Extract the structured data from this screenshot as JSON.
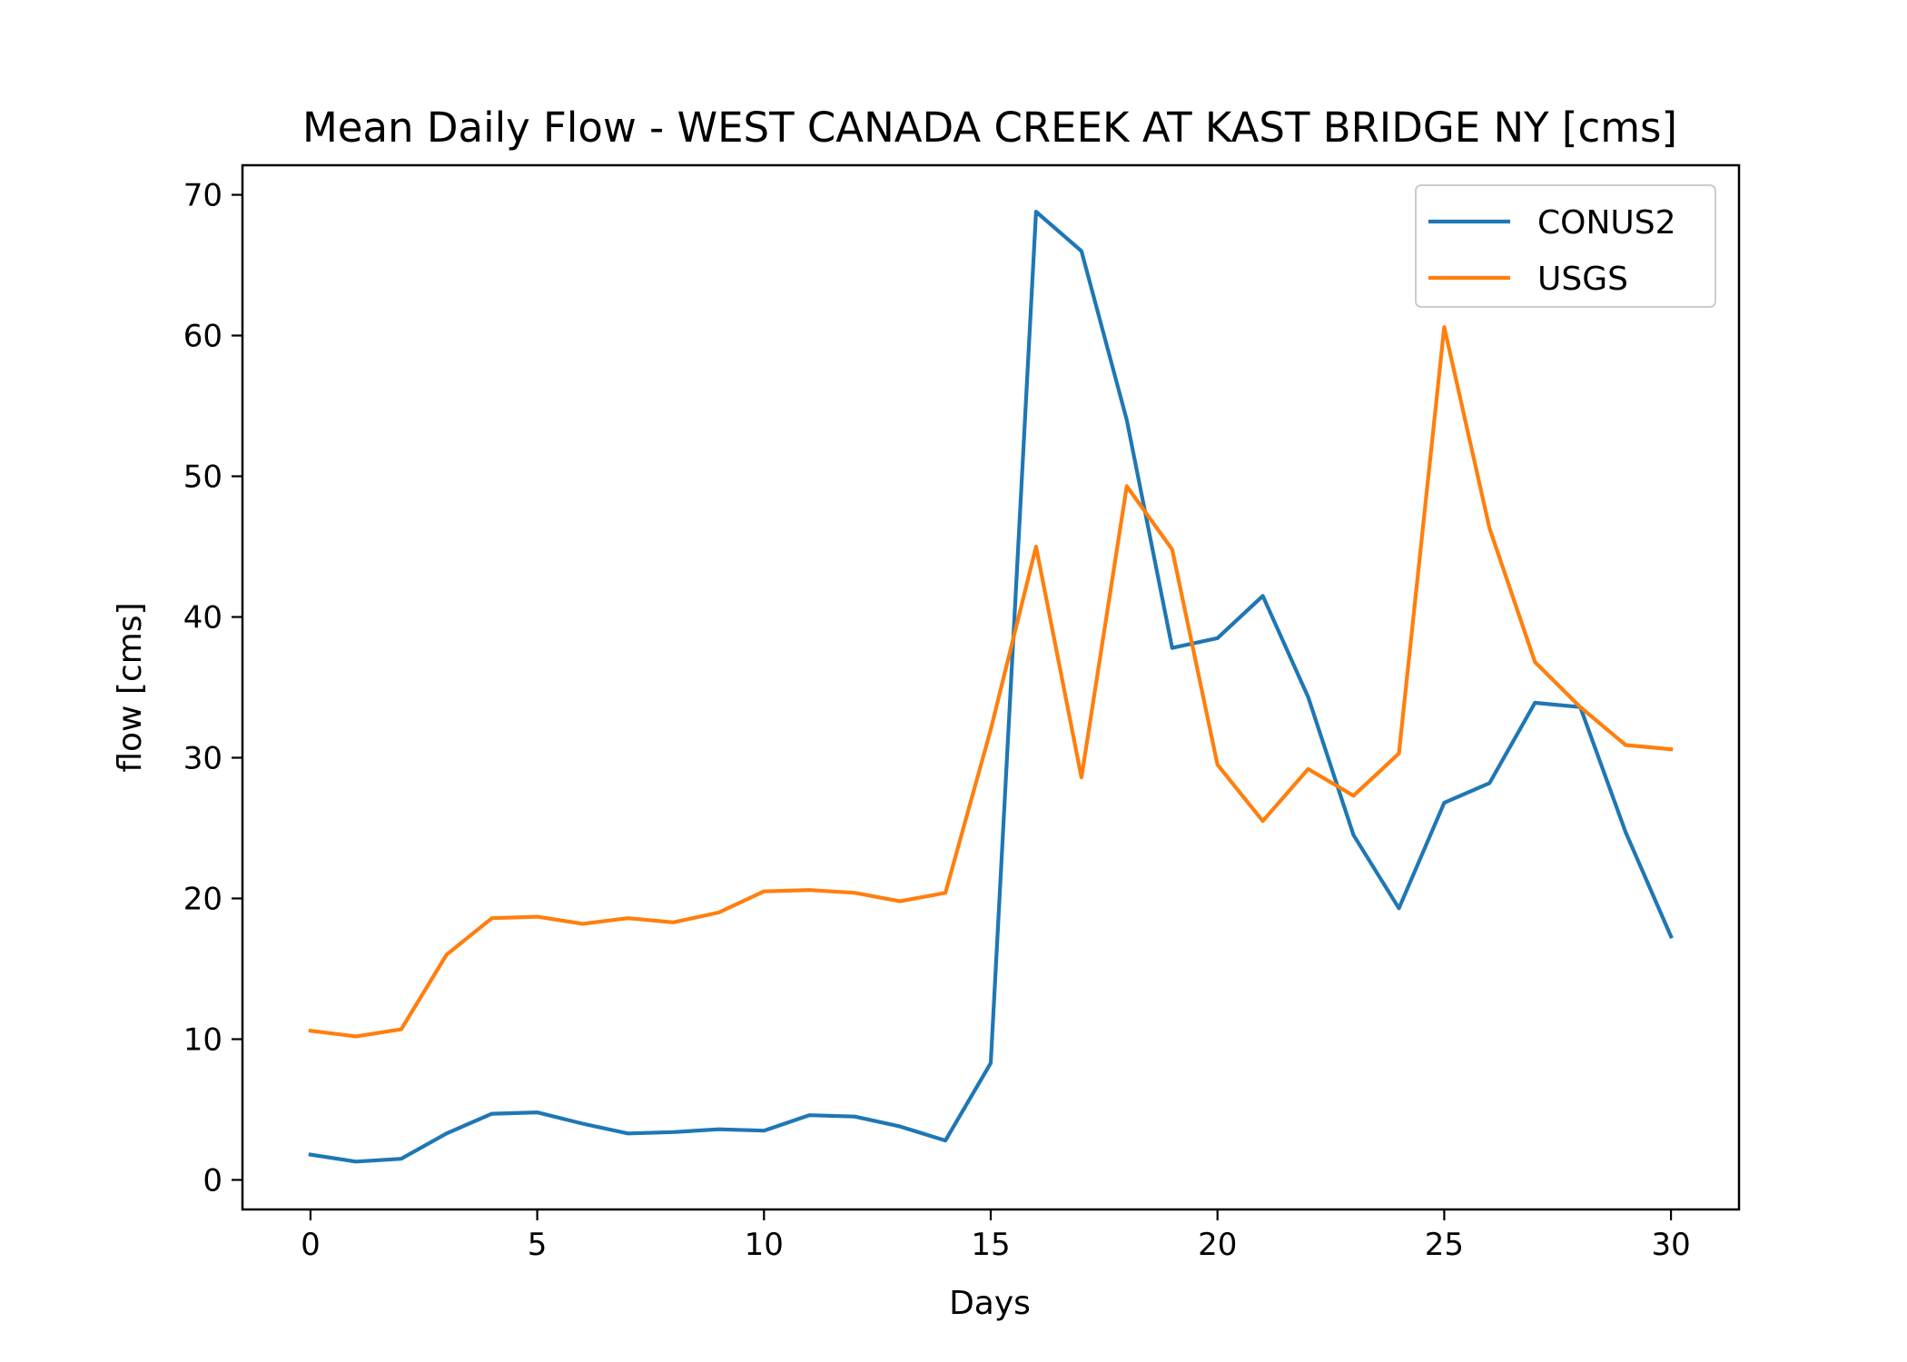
{
  "chart_data": {
    "type": "line",
    "title": "Mean Daily Flow - WEST CANADA CREEK AT KAST BRIDGE NY [cms]",
    "xlabel": "Days",
    "ylabel": "flow [cms]",
    "xlim": [
      -1.5,
      31.5
    ],
    "ylim": [
      -2.1,
      72.1
    ],
    "xticks": [
      0,
      5,
      10,
      15,
      20,
      25,
      30
    ],
    "yticks": [
      0,
      10,
      20,
      30,
      40,
      50,
      60,
      70
    ],
    "grid": false,
    "legend_position": "top-right",
    "x": [
      0,
      1,
      2,
      3,
      4,
      5,
      6,
      7,
      8,
      9,
      10,
      11,
      12,
      13,
      14,
      15,
      16,
      17,
      18,
      19,
      20,
      21,
      22,
      23,
      24,
      25,
      26,
      27,
      28,
      29,
      30
    ],
    "series": [
      {
        "name": "CONUS2",
        "color": "#1f77b4",
        "values": [
          1.8,
          1.3,
          1.5,
          3.3,
          4.7,
          4.8,
          4.0,
          3.3,
          3.4,
          3.6,
          3.5,
          4.6,
          4.5,
          3.8,
          2.8,
          8.3,
          68.8,
          66.0,
          54.0,
          37.8,
          38.5,
          41.5,
          34.3,
          24.5,
          19.3,
          26.8,
          28.2,
          33.9,
          33.6,
          24.7,
          17.3
        ]
      },
      {
        "name": "USGS",
        "color": "#ff7f0e",
        "values": [
          10.6,
          10.2,
          10.7,
          16.0,
          18.6,
          18.7,
          18.2,
          18.6,
          18.3,
          19.0,
          20.5,
          20.6,
          20.4,
          19.8,
          20.4,
          32.0,
          45.0,
          28.6,
          49.3,
          44.8,
          29.5,
          25.5,
          29.2,
          27.3,
          30.3,
          60.6,
          46.3,
          36.8,
          33.6,
          30.9,
          30.6
        ]
      }
    ]
  }
}
